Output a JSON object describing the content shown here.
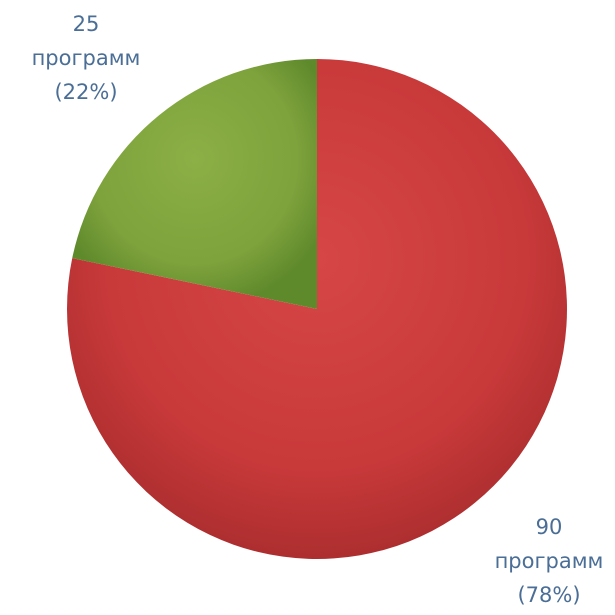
{
  "chart_data": {
    "type": "pie",
    "title": "",
    "start_angle_deg": 0,
    "direction": "clockwise",
    "slices": [
      {
        "value": 90,
        "percent": 78,
        "label_lines": [
          "90",
          "программ",
          "(78%)"
        ],
        "color": "#c8393a",
        "color_light": "#d64646",
        "color_dark": "#ad2e2f"
      },
      {
        "value": 25,
        "percent": 22,
        "label_lines": [
          "25",
          "программ",
          "(22%)"
        ],
        "color": "#7ea23c",
        "color_light": "#8cb046",
        "color_dark": "#5f8a2c"
      }
    ],
    "label_color": "#4a6e96",
    "legend": "none"
  }
}
